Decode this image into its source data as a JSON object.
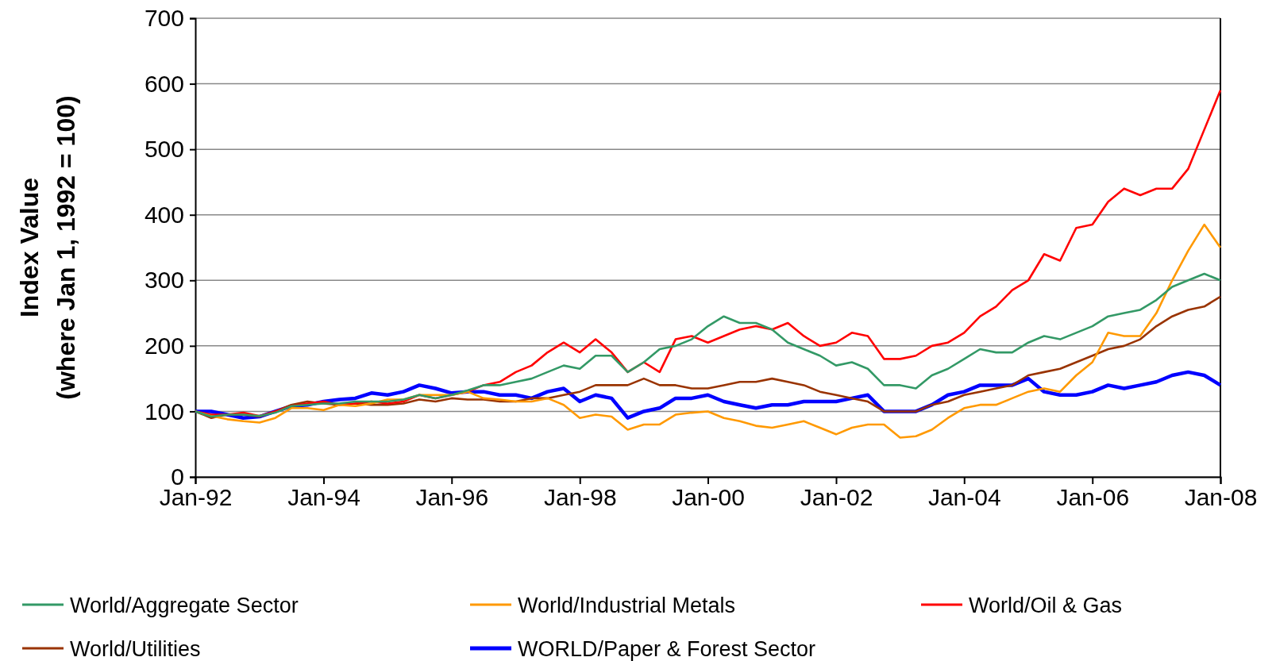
{
  "chart_data": {
    "type": "line",
    "ylabel": "Index Value\n(where Jan 1, 1992 = 100)",
    "x": [
      "1992-01",
      "1992-04",
      "1992-07",
      "1992-10",
      "1993-01",
      "1993-04",
      "1993-07",
      "1993-10",
      "1994-01",
      "1994-04",
      "1994-07",
      "1994-10",
      "1995-01",
      "1995-04",
      "1995-07",
      "1995-10",
      "1996-01",
      "1996-04",
      "1996-07",
      "1996-10",
      "1997-01",
      "1997-04",
      "1997-07",
      "1997-10",
      "1998-01",
      "1998-04",
      "1998-07",
      "1998-10",
      "1999-01",
      "1999-04",
      "1999-07",
      "1999-10",
      "2000-01",
      "2000-04",
      "2000-07",
      "2000-10",
      "2001-01",
      "2001-04",
      "2001-07",
      "2001-10",
      "2002-01",
      "2002-04",
      "2002-07",
      "2002-10",
      "2003-01",
      "2003-04",
      "2003-07",
      "2003-10",
      "2004-01",
      "2004-04",
      "2004-07",
      "2004-10",
      "2005-01",
      "2005-04",
      "2005-07",
      "2005-10",
      "2006-01",
      "2006-04",
      "2006-07",
      "2006-10",
      "2007-01",
      "2007-04",
      "2007-07",
      "2007-10",
      "2008-01"
    ],
    "xlim": [
      "1992-01",
      "2008-01"
    ],
    "xticks": [
      {
        "value": "1992-01",
        "label": "Jan-92"
      },
      {
        "value": "1994-01",
        "label": "Jan-94"
      },
      {
        "value": "1996-01",
        "label": "Jan-96"
      },
      {
        "value": "1998-01",
        "label": "Jan-98"
      },
      {
        "value": "2000-01",
        "label": "Jan-00"
      },
      {
        "value": "2002-01",
        "label": "Jan-02"
      },
      {
        "value": "2004-01",
        "label": "Jan-04"
      },
      {
        "value": "2006-01",
        "label": "Jan-06"
      },
      {
        "value": "2008-01",
        "label": "Jan-08"
      }
    ],
    "ylim": [
      0,
      700
    ],
    "yticks": [
      0,
      100,
      200,
      300,
      400,
      500,
      600,
      700
    ],
    "grid": "y",
    "legend": "bottom",
    "series": [
      {
        "name": "World/Aggregate Sector",
        "color": "#339966",
        "values": [
          100,
          92,
          95,
          95,
          93,
          98,
          108,
          110,
          112,
          112,
          115,
          115,
          115,
          118,
          125,
          120,
          125,
          132,
          140,
          140,
          145,
          150,
          160,
          170,
          165,
          185,
          185,
          160,
          175,
          195,
          200,
          210,
          230,
          245,
          235,
          235,
          225,
          205,
          195,
          185,
          170,
          175,
          165,
          140,
          140,
          135,
          155,
          165,
          180,
          195,
          190,
          190,
          205,
          215,
          210,
          220,
          230,
          245,
          250,
          255,
          270,
          290,
          300,
          310,
          300
        ]
      },
      {
        "name": "World/Industrial Metals",
        "color": "#ff9900",
        "values": [
          100,
          93,
          88,
          85,
          83,
          90,
          105,
          105,
          102,
          110,
          108,
          112,
          118,
          118,
          125,
          125,
          125,
          130,
          120,
          118,
          115,
          115,
          120,
          110,
          90,
          95,
          92,
          72,
          80,
          80,
          95,
          98,
          100,
          90,
          85,
          78,
          75,
          80,
          85,
          75,
          65,
          75,
          80,
          80,
          60,
          62,
          72,
          90,
          105,
          110,
          110,
          120,
          130,
          135,
          130,
          155,
          175,
          220,
          215,
          215,
          250,
          300,
          345,
          385,
          350
        ]
      },
      {
        "name": "World/Oil & Gas",
        "color": "#ff0000",
        "values": [
          100,
          95,
          95,
          98,
          93,
          100,
          108,
          112,
          115,
          110,
          112,
          115,
          112,
          115,
          125,
          120,
          125,
          130,
          140,
          145,
          160,
          170,
          190,
          205,
          190,
          210,
          190,
          160,
          175,
          160,
          210,
          215,
          205,
          215,
          225,
          230,
          225,
          235,
          215,
          200,
          205,
          220,
          215,
          180,
          180,
          185,
          200,
          205,
          220,
          245,
          260,
          285,
          300,
          340,
          330,
          380,
          385,
          420,
          440,
          430,
          440,
          440,
          470,
          530,
          590
        ]
      },
      {
        "name": "World/Utilities",
        "color": "#993300",
        "values": [
          100,
          90,
          95,
          95,
          92,
          100,
          110,
          115,
          112,
          110,
          112,
          110,
          110,
          112,
          118,
          115,
          120,
          118,
          118,
          115,
          115,
          120,
          120,
          125,
          130,
          140,
          140,
          140,
          150,
          140,
          140,
          135,
          135,
          140,
          145,
          145,
          150,
          145,
          140,
          130,
          125,
          120,
          115,
          100,
          100,
          100,
          110,
          115,
          125,
          130,
          135,
          140,
          155,
          160,
          165,
          175,
          185,
          195,
          200,
          210,
          230,
          245,
          255,
          260,
          275
        ]
      },
      {
        "name": "WORLD/Paper & Forest Sector",
        "color": "#0000ff",
        "values": [
          100,
          100,
          95,
          90,
          92,
          100,
          108,
          110,
          115,
          118,
          120,
          128,
          125,
          130,
          140,
          135,
          128,
          130,
          130,
          125,
          125,
          120,
          130,
          135,
          115,
          125,
          120,
          90,
          100,
          105,
          120,
          120,
          125,
          115,
          110,
          105,
          110,
          110,
          115,
          115,
          115,
          120,
          125,
          100,
          100,
          100,
          110,
          125,
          130,
          140,
          140,
          140,
          150,
          130,
          125,
          125,
          130,
          140,
          135,
          140,
          145,
          155,
          160,
          155,
          140
        ]
      }
    ]
  }
}
